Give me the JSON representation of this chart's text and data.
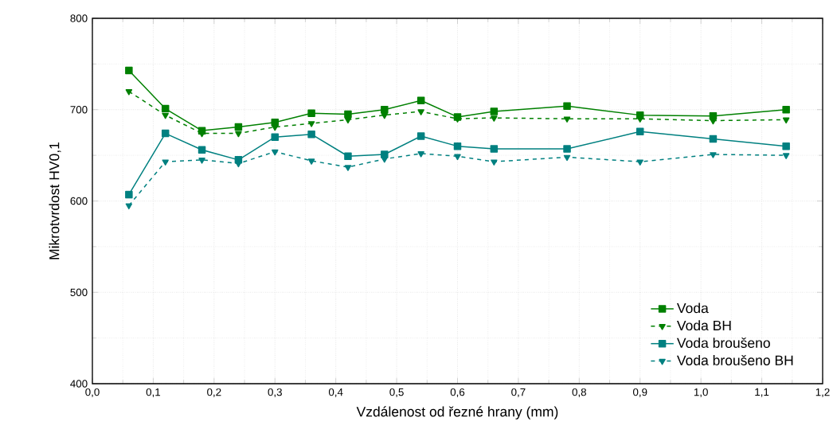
{
  "chart_data": {
    "type": "line",
    "xlabel": "Vzdálenost od řezné hrany (mm)",
    "ylabel": "Mikrotvrdost HV0,1",
    "x": [
      0.06,
      0.12,
      0.18,
      0.24,
      0.3,
      0.36,
      0.42,
      0.48,
      0.54,
      0.6,
      0.66,
      0.78,
      0.9,
      1.02,
      1.14
    ],
    "series": [
      {
        "name": "Voda",
        "color": "#008000",
        "marker": "square",
        "line_style": "solid",
        "values": [
          743,
          701,
          677,
          681,
          686,
          696,
          695,
          700,
          710,
          692,
          698,
          704,
          694,
          693,
          700
        ]
      },
      {
        "name": "Voda BH",
        "color": "#008000",
        "marker": "triangle",
        "line_style": "dashed",
        "values": [
          720,
          694,
          674,
          674,
          681,
          685,
          689,
          694,
          698,
          690,
          691,
          690,
          690,
          688,
          689
        ]
      },
      {
        "name": "Voda broušeno",
        "color": "#008080",
        "marker": "square",
        "line_style": "solid",
        "values": [
          607,
          674,
          656,
          645,
          670,
          673,
          649,
          651,
          671,
          660,
          657,
          657,
          676,
          668,
          660
        ]
      },
      {
        "name": "Voda broušeno BH",
        "color": "#008080",
        "marker": "triangle",
        "line_style": "dashed",
        "values": [
          595,
          643,
          645,
          641,
          654,
          644,
          637,
          646,
          652,
          649,
          643,
          648,
          643,
          651,
          650
        ]
      }
    ],
    "xlim": [
      0,
      1.2
    ],
    "ylim": [
      400,
      800
    ],
    "xticks": [
      {
        "value": 0,
        "label": "0,0"
      },
      {
        "value": 0.1,
        "label": "0,1"
      },
      {
        "value": 0.2,
        "label": "0,2"
      },
      {
        "value": 0.3,
        "label": "0,3"
      },
      {
        "value": 0.4,
        "label": "0,4"
      },
      {
        "value": 0.5,
        "label": "0,5"
      },
      {
        "value": 0.6,
        "label": "0,6"
      },
      {
        "value": 0.7,
        "label": "0,7"
      },
      {
        "value": 0.8,
        "label": "0,8"
      },
      {
        "value": 0.9,
        "label": "0,9"
      },
      {
        "value": 1.0,
        "label": "1,0"
      },
      {
        "value": 1.1,
        "label": "1,1"
      },
      {
        "value": 1.2,
        "label": "1,2"
      }
    ],
    "yticks": [
      400,
      500,
      600,
      700,
      800
    ],
    "grid": true,
    "legend": "bottom right"
  }
}
